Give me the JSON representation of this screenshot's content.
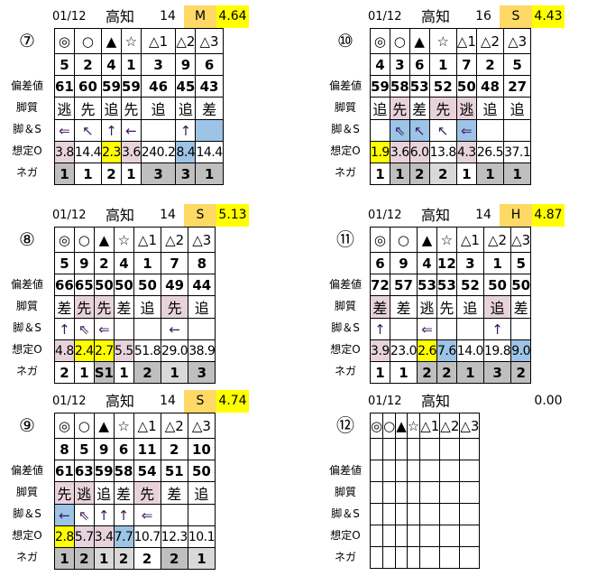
{
  "colors": {
    "p": "#E8D3DC",
    "y": "#FFFF00",
    "b": "#9DC3E6",
    "g": "#BFBFBF",
    "l": "#D9D9D9",
    "o": "#FFD966",
    "": "#FFFFFF"
  },
  "row_labels": [
    "偏差値",
    "脚質",
    "脚＆S",
    "想定O",
    "ネガ"
  ],
  "marks": [
    "◎",
    "○",
    "▲",
    "☆",
    "△1",
    "△2",
    "△3"
  ],
  "panels": [
    {
      "race": "⑦",
      "date": "01/12",
      "venue": "高知",
      "count": "14",
      "grade": "M",
      "value": "4.64",
      "rows": [
        {
          "cells": [
            {
              "v": "5"
            },
            {
              "v": "2"
            },
            {
              "v": "4"
            },
            {
              "v": "1"
            },
            {
              "v": "3"
            },
            {
              "v": "9"
            },
            {
              "v": "6"
            }
          ]
        },
        {
          "cells": [
            {
              "v": "61"
            },
            {
              "v": "60"
            },
            {
              "v": "59"
            },
            {
              "v": "59"
            },
            {
              "v": "46"
            },
            {
              "v": "45"
            },
            {
              "v": "43"
            }
          ]
        },
        {
          "cells": [
            {
              "v": "逃"
            },
            {
              "v": "先"
            },
            {
              "v": "追"
            },
            {
              "v": "先"
            },
            {
              "v": "追"
            },
            {
              "v": "追"
            },
            {
              "v": "差"
            }
          ]
        },
        {
          "cells": [
            {
              "v": "⇐"
            },
            {
              "v": "↖"
            },
            {
              "v": "↑"
            },
            {
              "v": "←"
            },
            {
              "v": ""
            },
            {
              "v": "↑"
            },
            {
              "v": "",
              "c": "b"
            }
          ]
        },
        {
          "cells": [
            {
              "v": "3.8",
              "c": "p"
            },
            {
              "v": "14.4"
            },
            {
              "v": "2.3",
              "c": "y"
            },
            {
              "v": "3.6",
              "c": "p"
            },
            {
              "v": "240.2"
            },
            {
              "v": "8.4",
              "c": "b"
            },
            {
              "v": "14.4"
            }
          ]
        },
        {
          "cells": [
            {
              "v": "1",
              "c": "g"
            },
            {
              "v": "1"
            },
            {
              "v": "2"
            },
            {
              "v": "1"
            },
            {
              "v": "3",
              "c": "g"
            },
            {
              "v": "3",
              "c": "g"
            },
            {
              "v": "1",
              "c": "g"
            }
          ]
        }
      ]
    },
    {
      "race": "⑩",
      "date": "01/12",
      "venue": "高知",
      "count": "16",
      "grade": "S",
      "value": "4.43",
      "rows": [
        {
          "cells": [
            {
              "v": "4"
            },
            {
              "v": "3"
            },
            {
              "v": "6"
            },
            {
              "v": "1"
            },
            {
              "v": "7"
            },
            {
              "v": "2"
            },
            {
              "v": "5"
            }
          ]
        },
        {
          "cells": [
            {
              "v": "59"
            },
            {
              "v": "58"
            },
            {
              "v": "53"
            },
            {
              "v": "52"
            },
            {
              "v": "50"
            },
            {
              "v": "48"
            },
            {
              "v": "27"
            }
          ]
        },
        {
          "cells": [
            {
              "v": "追"
            },
            {
              "v": "先",
              "c": "p"
            },
            {
              "v": "差"
            },
            {
              "v": "先",
              "c": "p"
            },
            {
              "v": "逃",
              "c": "p"
            },
            {
              "v": "追"
            },
            {
              "v": "追"
            }
          ]
        },
        {
          "cells": [
            {
              "v": ""
            },
            {
              "v": "⇖",
              "c": "b"
            },
            {
              "v": "↖",
              "c": "b"
            },
            {
              "v": "↖"
            },
            {
              "v": "⇐",
              "c": "b"
            },
            {
              "v": ""
            },
            {
              "v": ""
            }
          ]
        },
        {
          "cells": [
            {
              "v": "1.9",
              "c": "y"
            },
            {
              "v": "3.6",
              "c": "p"
            },
            {
              "v": "6.0",
              "c": "p"
            },
            {
              "v": "13.8"
            },
            {
              "v": "4.3",
              "c": "p"
            },
            {
              "v": "26.5"
            },
            {
              "v": "37.1"
            }
          ]
        },
        {
          "cells": [
            {
              "v": "1"
            },
            {
              "v": "1",
              "c": "g"
            },
            {
              "v": "2",
              "c": "g"
            },
            {
              "v": "2",
              "c": "l"
            },
            {
              "v": "1"
            },
            {
              "v": "1",
              "c": "g"
            },
            {
              "v": "1",
              "c": "g"
            }
          ]
        }
      ]
    },
    {
      "race": "⑧",
      "date": "01/12",
      "venue": "高知",
      "count": "14",
      "grade": "S",
      "value": "5.13",
      "rows": [
        {
          "cells": [
            {
              "v": "5"
            },
            {
              "v": "9"
            },
            {
              "v": "2"
            },
            {
              "v": "4"
            },
            {
              "v": "1"
            },
            {
              "v": "7"
            },
            {
              "v": "8"
            }
          ]
        },
        {
          "cells": [
            {
              "v": "66"
            },
            {
              "v": "65"
            },
            {
              "v": "50"
            },
            {
              "v": "50"
            },
            {
              "v": "50"
            },
            {
              "v": "49"
            },
            {
              "v": "44"
            }
          ]
        },
        {
          "cells": [
            {
              "v": "差"
            },
            {
              "v": "先",
              "c": "p"
            },
            {
              "v": "先",
              "c": "p"
            },
            {
              "v": "差"
            },
            {
              "v": "追"
            },
            {
              "v": "先",
              "c": "p"
            },
            {
              "v": "追"
            }
          ]
        },
        {
          "cells": [
            {
              "v": "↑"
            },
            {
              "v": "⇖"
            },
            {
              "v": "⇐"
            },
            {
              "v": ""
            },
            {
              "v": ""
            },
            {
              "v": "←"
            },
            {
              "v": ""
            }
          ]
        },
        {
          "cells": [
            {
              "v": "4.8",
              "c": "p"
            },
            {
              "v": "2.4",
              "c": "y"
            },
            {
              "v": "2.7",
              "c": "y"
            },
            {
              "v": "5.5",
              "c": "p"
            },
            {
              "v": "51.8"
            },
            {
              "v": "29.0"
            },
            {
              "v": "38.9"
            }
          ]
        },
        {
          "cells": [
            {
              "v": "2"
            },
            {
              "v": "1"
            },
            {
              "v": "S1",
              "c": "g"
            },
            {
              "v": "1"
            },
            {
              "v": "2",
              "c": "g"
            },
            {
              "v": "1",
              "c": "l"
            },
            {
              "v": "3",
              "c": "g"
            }
          ]
        }
      ]
    },
    {
      "race": "⑪",
      "date": "01/12",
      "venue": "高知",
      "count": "14",
      "grade": "H",
      "value": "4.87",
      "rows": [
        {
          "cells": [
            {
              "v": "6"
            },
            {
              "v": "9"
            },
            {
              "v": "4"
            },
            {
              "v": "12"
            },
            {
              "v": "3"
            },
            {
              "v": "1"
            },
            {
              "v": "5"
            }
          ]
        },
        {
          "cells": [
            {
              "v": "72"
            },
            {
              "v": "57"
            },
            {
              "v": "53"
            },
            {
              "v": "53"
            },
            {
              "v": "52"
            },
            {
              "v": "50"
            },
            {
              "v": "50"
            }
          ]
        },
        {
          "cells": [
            {
              "v": "差",
              "c": "p"
            },
            {
              "v": "差"
            },
            {
              "v": "逃"
            },
            {
              "v": "先"
            },
            {
              "v": "追"
            },
            {
              "v": "追",
              "c": "p"
            },
            {
              "v": "差"
            }
          ]
        },
        {
          "cells": [
            {
              "v": "↑"
            },
            {
              "v": ""
            },
            {
              "v": "⇐"
            },
            {
              "v": ""
            },
            {
              "v": ""
            },
            {
              "v": "↑"
            },
            {
              "v": ""
            }
          ]
        },
        {
          "cells": [
            {
              "v": "3.9",
              "c": "p"
            },
            {
              "v": "23.0"
            },
            {
              "v": "2.6",
              "c": "y"
            },
            {
              "v": "7.6",
              "c": "b"
            },
            {
              "v": "14.0"
            },
            {
              "v": "19.8"
            },
            {
              "v": "9.0",
              "c": "b"
            }
          ]
        },
        {
          "cells": [
            {
              "v": "1"
            },
            {
              "v": "1"
            },
            {
              "v": "2",
              "c": "g"
            },
            {
              "v": "2",
              "c": "g"
            },
            {
              "v": "1",
              "c": "g"
            },
            {
              "v": "3",
              "c": "g"
            },
            {
              "v": "2",
              "c": "g"
            }
          ]
        }
      ]
    },
    {
      "race": "⑨",
      "date": "01/12",
      "venue": "高知",
      "count": "14",
      "grade": "S",
      "value": "4.74",
      "rows": [
        {
          "cells": [
            {
              "v": "8"
            },
            {
              "v": "5"
            },
            {
              "v": "9"
            },
            {
              "v": "6"
            },
            {
              "v": "11"
            },
            {
              "v": "2"
            },
            {
              "v": "10"
            }
          ]
        },
        {
          "cells": [
            {
              "v": "61"
            },
            {
              "v": "63"
            },
            {
              "v": "59"
            },
            {
              "v": "58"
            },
            {
              "v": "54"
            },
            {
              "v": "51"
            },
            {
              "v": "50"
            }
          ]
        },
        {
          "cells": [
            {
              "v": "先",
              "c": "p"
            },
            {
              "v": "逃",
              "c": "p"
            },
            {
              "v": "追"
            },
            {
              "v": "差"
            },
            {
              "v": "先",
              "c": "p"
            },
            {
              "v": "差"
            },
            {
              "v": "追"
            }
          ]
        },
        {
          "cells": [
            {
              "v": "←",
              "c": "b"
            },
            {
              "v": "⇖"
            },
            {
              "v": "↑"
            },
            {
              "v": "↑"
            },
            {
              "v": "⇐"
            },
            {
              "v": ""
            },
            {
              "v": ""
            }
          ]
        },
        {
          "cells": [
            {
              "v": "2.8",
              "c": "y"
            },
            {
              "v": "5.7",
              "c": "p"
            },
            {
              "v": "3.4",
              "c": "p"
            },
            {
              "v": "7.7",
              "c": "b"
            },
            {
              "v": "10.7"
            },
            {
              "v": "12.3"
            },
            {
              "v": "10.1"
            }
          ]
        },
        {
          "cells": [
            {
              "v": "1",
              "c": "g"
            },
            {
              "v": "2",
              "c": "g"
            },
            {
              "v": "1",
              "c": "l"
            },
            {
              "v": "2",
              "c": "l"
            },
            {
              "v": "2"
            },
            {
              "v": "2",
              "c": "g"
            },
            {
              "v": "1",
              "c": "l"
            }
          ]
        }
      ]
    },
    {
      "race": "⑫",
      "date": "01/12",
      "venue": "高知",
      "count": "",
      "grade": "",
      "value": "0.00",
      "rows": [
        {
          "cells": [
            {
              "v": ""
            },
            {
              "v": ""
            },
            {
              "v": ""
            },
            {
              "v": ""
            },
            {
              "v": ""
            },
            {
              "v": ""
            },
            {
              "v": ""
            }
          ]
        },
        {
          "cells": [
            {
              "v": ""
            },
            {
              "v": ""
            },
            {
              "v": ""
            },
            {
              "v": ""
            },
            {
              "v": ""
            },
            {
              "v": ""
            },
            {
              "v": ""
            }
          ]
        },
        {
          "cells": [
            {
              "v": ""
            },
            {
              "v": ""
            },
            {
              "v": ""
            },
            {
              "v": ""
            },
            {
              "v": ""
            },
            {
              "v": ""
            },
            {
              "v": ""
            }
          ]
        },
        {
          "cells": [
            {
              "v": ""
            },
            {
              "v": ""
            },
            {
              "v": ""
            },
            {
              "v": ""
            },
            {
              "v": ""
            },
            {
              "v": ""
            },
            {
              "v": ""
            }
          ]
        },
        {
          "cells": [
            {
              "v": ""
            },
            {
              "v": ""
            },
            {
              "v": ""
            },
            {
              "v": ""
            },
            {
              "v": ""
            },
            {
              "v": ""
            },
            {
              "v": ""
            }
          ]
        },
        {
          "cells": [
            {
              "v": ""
            },
            {
              "v": ""
            },
            {
              "v": ""
            },
            {
              "v": ""
            },
            {
              "v": ""
            },
            {
              "v": ""
            },
            {
              "v": ""
            }
          ]
        }
      ]
    }
  ]
}
